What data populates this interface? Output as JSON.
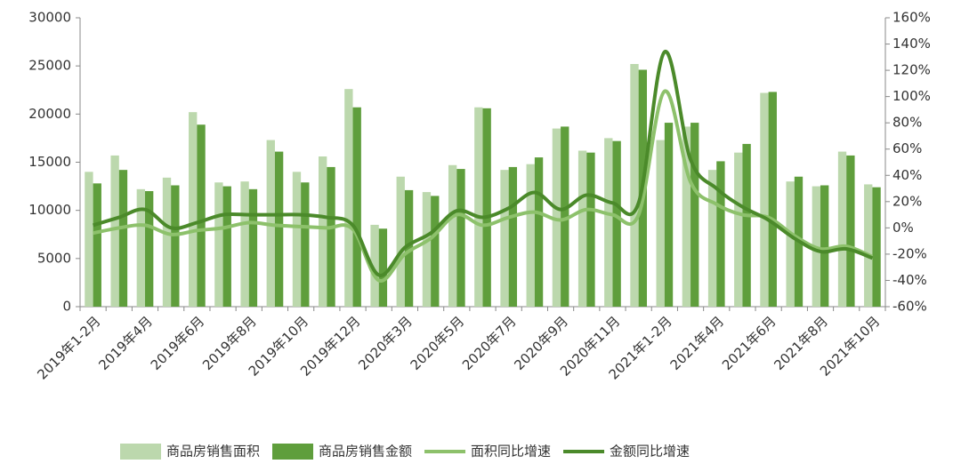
{
  "chart_data": {
    "type": "bar-line",
    "categories": [
      "2019年1-2月",
      null,
      "2019年4月",
      null,
      "2019年6月",
      null,
      "2019年8月",
      null,
      "2019年10月",
      null,
      "2019年12月",
      null,
      "2020年3月",
      null,
      "2020年5月",
      null,
      "2020年7月",
      null,
      "2020年9月",
      null,
      "2020年11月",
      null,
      "2021年1-2月",
      null,
      "2021年4月",
      null,
      "2021年6月",
      null,
      "2021年8月",
      null,
      "2021年10月"
    ],
    "series": [
      {
        "name": "商品房销售面积",
        "type": "bar",
        "color": "#bcd8ad",
        "values": [
          14000,
          15700,
          12200,
          13400,
          20200,
          12900,
          13000,
          17300,
          14000,
          15600,
          22600,
          8500,
          13500,
          11900,
          14700,
          20700,
          14200,
          14800,
          18500,
          16200,
          17500,
          25200,
          17300,
          18700,
          14200,
          16000,
          22200,
          13000,
          12500,
          16100,
          12700
        ]
      },
      {
        "name": "商品房销售金额",
        "type": "bar",
        "color": "#5f9e3c",
        "values": [
          12800,
          14200,
          12000,
          12600,
          18900,
          12500,
          12200,
          16100,
          12900,
          14500,
          20700,
          8100,
          12100,
          11500,
          14300,
          20600,
          14500,
          15500,
          18700,
          16000,
          17200,
          24600,
          19100,
          19100,
          15100,
          16900,
          22300,
          13500,
          12600,
          15700,
          12400
        ]
      },
      {
        "name": "面积同比增速",
        "type": "line",
        "axis": "y2",
        "color": "#8dc16b",
        "values": [
          -4,
          0,
          2,
          -5,
          -2,
          0,
          4,
          2,
          1,
          0,
          -1,
          -40,
          -20,
          -8,
          10,
          2,
          8,
          12,
          6,
          14,
          10,
          10,
          104,
          35,
          18,
          10,
          8,
          -6,
          -16,
          -14,
          -22
        ]
      },
      {
        "name": "金额同比增速",
        "type": "line",
        "axis": "y2",
        "color": "#4b8a2a",
        "values": [
          2,
          8,
          14,
          0,
          4,
          10,
          10,
          10,
          10,
          8,
          2,
          -36,
          -15,
          -4,
          13,
          8,
          15,
          27,
          14,
          25,
          19,
          19,
          134,
          52,
          30,
          16,
          6,
          -8,
          -18,
          -16,
          -23
        ]
      }
    ],
    "ylim": [
      0,
      30000
    ],
    "yticks": [
      0,
      5000,
      10000,
      15000,
      20000,
      25000,
      30000
    ],
    "y2lim": [
      -60,
      160
    ],
    "y2ticks": [
      {
        "value": -60,
        "label": "-60%"
      },
      {
        "value": -40,
        "label": "-40%"
      },
      {
        "value": -20,
        "label": "-20%"
      },
      {
        "value": 0,
        "label": "0%"
      },
      {
        "value": 20,
        "label": "20%"
      },
      {
        "value": 40,
        "label": "40%"
      },
      {
        "value": 60,
        "label": "60%"
      },
      {
        "value": 80,
        "label": "80%"
      },
      {
        "value": 100,
        "label": "100%"
      },
      {
        "value": 120,
        "label": "120%"
      },
      {
        "value": 140,
        "label": "140%"
      },
      {
        "value": 160,
        "label": "160%"
      }
    ],
    "legend": "bottom"
  }
}
